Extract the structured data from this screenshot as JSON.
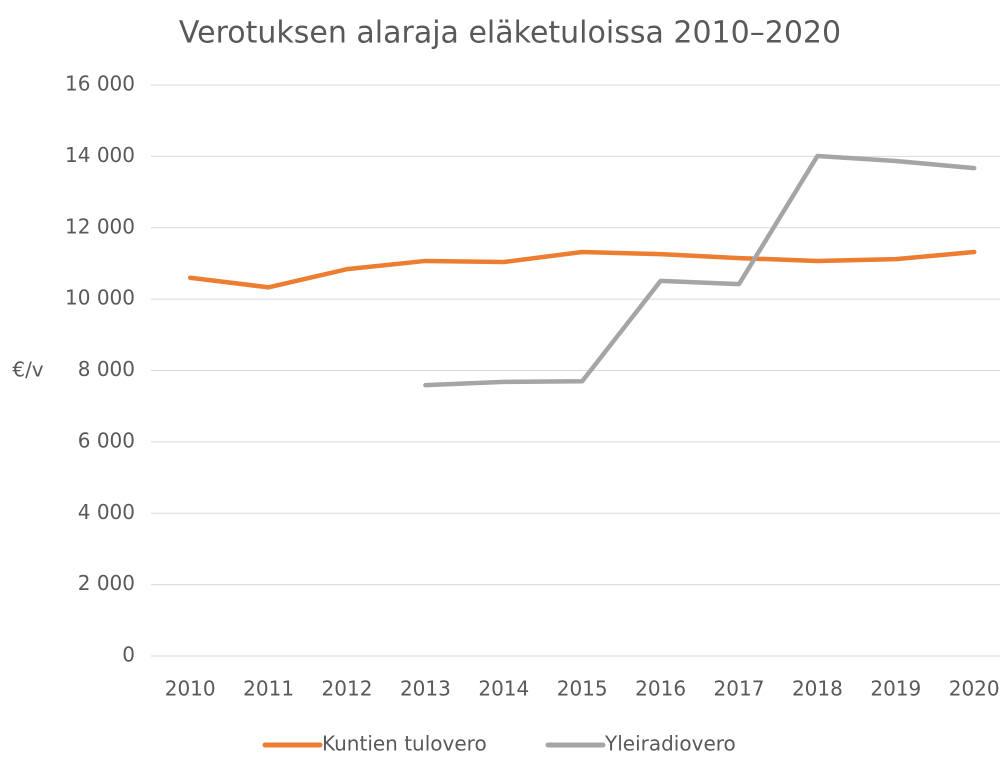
{
  "chart_data": {
    "type": "line",
    "title": "Verotuksen alaraja eläketuloissa 2010–2020",
    "y_label": "€/v",
    "categories": [
      "2010",
      "2011",
      "2012",
      "2013",
      "2014",
      "2015",
      "2016",
      "2017",
      "2018",
      "2019",
      "2020"
    ],
    "series": [
      {
        "name": "Kuntien tulovero",
        "color": "#ED7D31",
        "values": [
          10600,
          10330,
          10840,
          11070,
          11040,
          11320,
          11260,
          11150,
          11070,
          11120,
          11320
        ]
      },
      {
        "name": "Yleiradiovero",
        "color": "#A5A5A5",
        "values": [
          null,
          null,
          null,
          7590,
          7680,
          7700,
          10510,
          10420,
          14010,
          13870,
          13670
        ]
      }
    ],
    "ylim": [
      0,
      16000
    ],
    "yticks": [
      0,
      {
        "value": 2000,
        "label": "2 000"
      },
      {
        "value": 4000,
        "label": "4 000"
      },
      {
        "value": 6000,
        "label": "6 000"
      },
      {
        "value": 8000,
        "label": "8 000"
      },
      {
        "value": 10000,
        "label": "10 000"
      },
      {
        "value": 12000,
        "label": "12 000"
      },
      {
        "value": 14000,
        "label": "14 000"
      },
      {
        "value": 16000,
        "label": "16 000"
      }
    ],
    "grid": true,
    "legend": "bottom"
  }
}
